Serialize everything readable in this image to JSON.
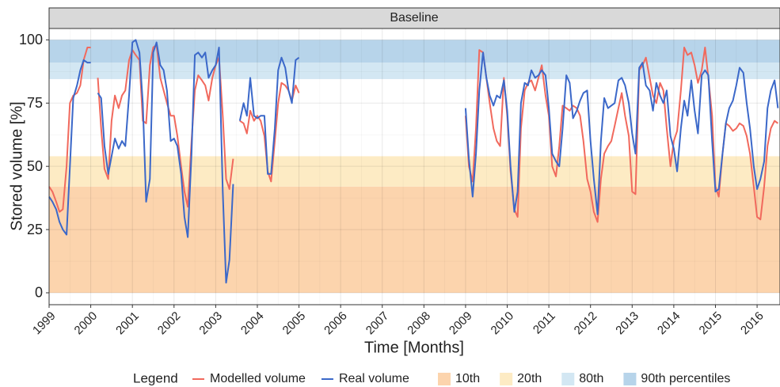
{
  "chart_data": {
    "type": "line",
    "facet_title": "Baseline",
    "x_label": "Time [Months]",
    "y_label": "Stored volume [%]",
    "legend_title": "Legend",
    "legend_position": "bottom",
    "grid": true,
    "xlim": [
      1999,
      2016.55
    ],
    "ylim": [
      -4.7,
      104.5
    ],
    "yticks": [
      0,
      25,
      50,
      75,
      100
    ],
    "xticks": [
      1999,
      2000,
      2001,
      2002,
      2003,
      2004,
      2005,
      2006,
      2007,
      2008,
      2009,
      2010,
      2011,
      2012,
      2013,
      2014,
      2015,
      2016
    ],
    "bands": [
      {
        "name": "10th",
        "range": [
          0,
          42
        ],
        "color": "#fcd4ad"
      },
      {
        "name": "20th",
        "range": [
          42,
          54
        ],
        "color": "#fdebc4"
      },
      {
        "name": "80th",
        "range": [
          84.5,
          91
        ],
        "color": "#d3e7f3"
      },
      {
        "name": "90th percentiles",
        "range": [
          91,
          100
        ],
        "color": "#b7d4ea"
      }
    ],
    "x": [
      1999,
      1999.08,
      1999.17,
      1999.25,
      1999.33,
      1999.42,
      1999.5,
      1999.58,
      1999.67,
      1999.75,
      1999.83,
      1999.92,
      2000,
      2000.08,
      2000.17,
      2000.25,
      2000.33,
      2000.42,
      2000.5,
      2000.58,
      2000.67,
      2000.75,
      2000.83,
      2000.92,
      2001,
      2001.08,
      2001.17,
      2001.25,
      2001.33,
      2001.42,
      2001.5,
      2001.58,
      2001.67,
      2001.75,
      2001.83,
      2001.92,
      2002,
      2002.08,
      2002.17,
      2002.25,
      2002.33,
      2002.42,
      2002.5,
      2002.58,
      2002.67,
      2002.75,
      2002.83,
      2002.92,
      2003,
      2003.08,
      2003.17,
      2003.25,
      2003.33,
      2003.42,
      2003.5,
      2003.58,
      2003.67,
      2003.75,
      2003.83,
      2003.92,
      2004,
      2004.08,
      2004.17,
      2004.25,
      2004.33,
      2004.42,
      2004.5,
      2004.58,
      2004.67,
      2004.75,
      2004.83,
      2004.92,
      2005,
      2005.08,
      2009,
      2009.08,
      2009.17,
      2009.25,
      2009.33,
      2009.42,
      2009.5,
      2009.58,
      2009.67,
      2009.75,
      2009.83,
      2009.92,
      2010,
      2010.08,
      2010.17,
      2010.25,
      2010.33,
      2010.42,
      2010.5,
      2010.58,
      2010.67,
      2010.75,
      2010.83,
      2010.92,
      2011,
      2011.08,
      2011.17,
      2011.25,
      2011.33,
      2011.42,
      2011.5,
      2011.58,
      2011.67,
      2011.75,
      2011.83,
      2011.92,
      2012,
      2012.08,
      2012.17,
      2012.25,
      2012.33,
      2012.42,
      2012.5,
      2012.58,
      2012.67,
      2012.75,
      2012.83,
      2012.92,
      2013,
      2013.08,
      2013.17,
      2013.25,
      2013.33,
      2013.42,
      2013.5,
      2013.58,
      2013.67,
      2013.75,
      2013.83,
      2013.92,
      2014,
      2014.08,
      2014.17,
      2014.25,
      2014.33,
      2014.42,
      2014.5,
      2014.58,
      2014.67,
      2014.75,
      2014.83,
      2014.92,
      2015,
      2015.08,
      2015.17,
      2015.25,
      2015.33,
      2015.42,
      2015.5,
      2015.58,
      2015.67,
      2015.75,
      2015.83,
      2015.92,
      2016,
      2016.08,
      2016.17,
      2016.25,
      2016.33,
      2016.42,
      2016.5
    ],
    "series": [
      {
        "name": "Modelled volume",
        "color": "#f1695d",
        "values": [
          42,
          40,
          36,
          32,
          33,
          50,
          75,
          78,
          79,
          82,
          92,
          97,
          97,
          null,
          85,
          65,
          49,
          45,
          68,
          78,
          73,
          78,
          80,
          92,
          96,
          94,
          92,
          68,
          67,
          90,
          97,
          98,
          85,
          80,
          75,
          70,
          70,
          62,
          50,
          40,
          34,
          60,
          80,
          86,
          84,
          82,
          76,
          85,
          90,
          93,
          70,
          45,
          41,
          53,
          null,
          68,
          67,
          63,
          72,
          68,
          70,
          68,
          62,
          48,
          44,
          60,
          75,
          83,
          82,
          80,
          76,
          82,
          79,
          null,
          70,
          50,
          44,
          65,
          96,
          95,
          85,
          75,
          65,
          60,
          58,
          85,
          70,
          48,
          33,
          30,
          65,
          80,
          83,
          84,
          80,
          85,
          90,
          78,
          70,
          50,
          46,
          58,
          74,
          73,
          72,
          74,
          73,
          70,
          60,
          45,
          40,
          32,
          28,
          45,
          55,
          58,
          60,
          66,
          73,
          79,
          70,
          62,
          40,
          39,
          88,
          90,
          93,
          85,
          78,
          75,
          83,
          80,
          65,
          50,
          60,
          64,
          80,
          97,
          94,
          95,
          90,
          83,
          88,
          97,
          85,
          70,
          42,
          38,
          55,
          67,
          66,
          64,
          65,
          67,
          66,
          62,
          55,
          42,
          30,
          29,
          42,
          58,
          65,
          68,
          67
        ]
      },
      {
        "name": "Real volume",
        "color": "#3b68c9",
        "values": [
          38,
          36,
          33,
          28,
          25,
          23,
          50,
          77,
          82,
          88,
          92,
          91,
          91,
          null,
          79,
          77,
          58,
          47,
          54,
          61,
          57,
          60,
          58,
          78,
          99,
          100,
          95,
          75,
          36,
          45,
          95,
          99,
          90,
          88,
          80,
          60,
          61,
          58,
          47,
          30,
          22,
          55,
          94,
          95,
          93,
          95,
          85,
          88,
          90,
          97,
          40,
          4,
          13,
          43,
          null,
          68,
          75,
          70,
          85,
          70,
          69,
          70,
          70,
          47,
          47,
          65,
          88,
          93,
          89,
          80,
          75,
          92,
          93,
          null,
          73,
          53,
          38,
          55,
          80,
          95,
          85,
          78,
          74,
          78,
          77,
          84,
          72,
          50,
          32,
          40,
          75,
          83,
          82,
          88,
          85,
          86,
          88,
          86,
          73,
          55,
          52,
          50,
          65,
          86,
          83,
          69,
          72,
          76,
          79,
          80,
          60,
          45,
          31,
          60,
          77,
          73,
          74,
          75,
          84,
          85,
          82,
          75,
          63,
          55,
          89,
          91,
          82,
          80,
          72,
          83,
          78,
          75,
          80,
          62,
          57,
          48,
          65,
          76,
          70,
          84,
          72,
          63,
          86,
          88,
          86,
          60,
          40,
          41,
          55,
          67,
          73,
          76,
          82,
          89,
          87,
          75,
          65,
          50,
          41,
          45,
          52,
          73,
          80,
          84,
          73
        ]
      }
    ]
  }
}
